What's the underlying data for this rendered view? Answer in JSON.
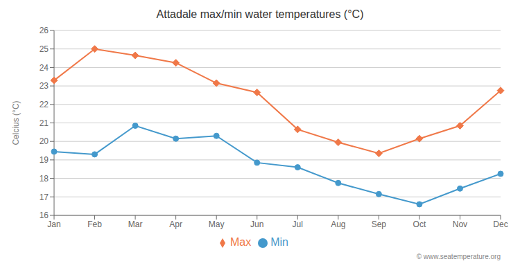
{
  "chart_data": {
    "type": "line",
    "title": "Attadale max/min water temperatures (°C)",
    "y_label": "Celcius (°C)",
    "categories": [
      "Jan",
      "Feb",
      "Mar",
      "Apr",
      "May",
      "Jun",
      "Jul",
      "Aug",
      "Sep",
      "Oct",
      "Nov",
      "Dec"
    ],
    "series": [
      {
        "name": "Max",
        "color": "#f07848",
        "marker": "diamond",
        "values": [
          23.3,
          25.0,
          24.65,
          24.25,
          23.15,
          22.65,
          20.65,
          19.95,
          19.35,
          20.15,
          20.85,
          22.75
        ]
      },
      {
        "name": "Min",
        "color": "#4499cc",
        "marker": "circle",
        "values": [
          19.45,
          19.3,
          20.85,
          20.15,
          20.3,
          18.85,
          18.6,
          17.75,
          17.15,
          16.6,
          17.45,
          18.25
        ]
      }
    ],
    "ylim": [
      16,
      26
    ],
    "yticks": [
      16,
      17,
      18,
      19,
      20,
      21,
      22,
      23,
      24,
      25,
      26
    ],
    "grid": true,
    "legend": "bottom",
    "annotations": [
      "© www.seatemperature.org"
    ]
  }
}
